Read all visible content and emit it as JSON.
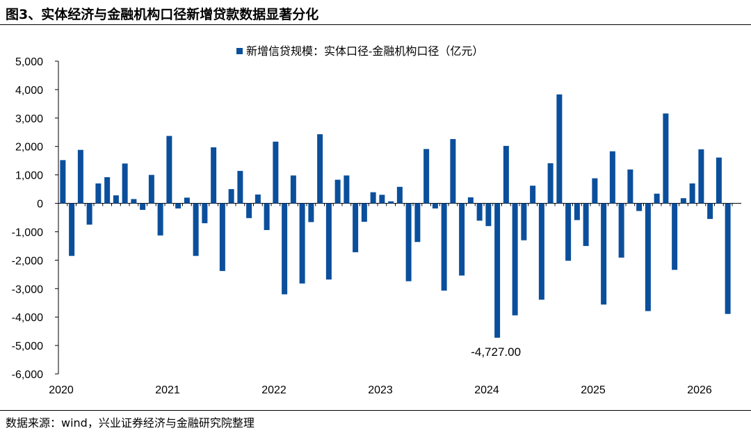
{
  "figure": {
    "title": "图3、实体经济与金融机构口径新增贷款数据显著分化",
    "source": "数据来源：wind，兴业证券经济与金融研究院整理"
  },
  "chart_data": {
    "type": "bar",
    "title": "",
    "xlabel": "",
    "ylabel": "",
    "ylim": [
      -6000,
      5000
    ],
    "yticks": [
      5000,
      4000,
      3000,
      2000,
      1000,
      0,
      -1000,
      -2000,
      -3000,
      -4000,
      -5000,
      -6000
    ],
    "ytick_labels": [
      "5,000",
      "4,000",
      "3,000",
      "2,000",
      "1,000",
      "0",
      "-1,000",
      "-2,000",
      "-3,000",
      "-4,000",
      "-5,000",
      "-6,000"
    ],
    "xtick_labels": [
      "2020",
      "2021",
      "2022",
      "2023",
      "2024",
      "2025",
      "2026"
    ],
    "xtick_label_month_index": [
      0,
      12,
      24,
      36,
      48,
      60,
      72
    ],
    "grid": false,
    "legend": "top-center",
    "color": "#0b4f9c",
    "series": [
      {
        "name": "新增信贷规模：实体口径-金融机构口径（亿元）",
        "values": [
          1520,
          -1850,
          1880,
          -750,
          700,
          920,
          280,
          1400,
          150,
          -230,
          1000,
          -1130,
          2370,
          -180,
          200,
          -1850,
          -700,
          1970,
          -2380,
          500,
          1140,
          -520,
          310,
          -940,
          2170,
          -3200,
          980,
          -2820,
          -660,
          2430,
          -2680,
          830,
          980,
          -1720,
          -650,
          390,
          300,
          70,
          580,
          -2740,
          -1360,
          1910,
          -180,
          -3070,
          2260,
          -2540,
          210,
          -610,
          -800,
          -4727,
          2020,
          -3940,
          -1300,
          620,
          -3390,
          1410,
          3830,
          -2020,
          -590,
          -1500,
          880,
          -3560,
          1830,
          -1910,
          1190,
          -270,
          -3790,
          340,
          3160,
          -2340,
          180,
          700,
          1900,
          -550,
          1610,
          -3890
        ]
      }
    ],
    "annotations": [
      {
        "text": "-4,727.00",
        "month_index": 49,
        "value": -4727
      }
    ]
  }
}
